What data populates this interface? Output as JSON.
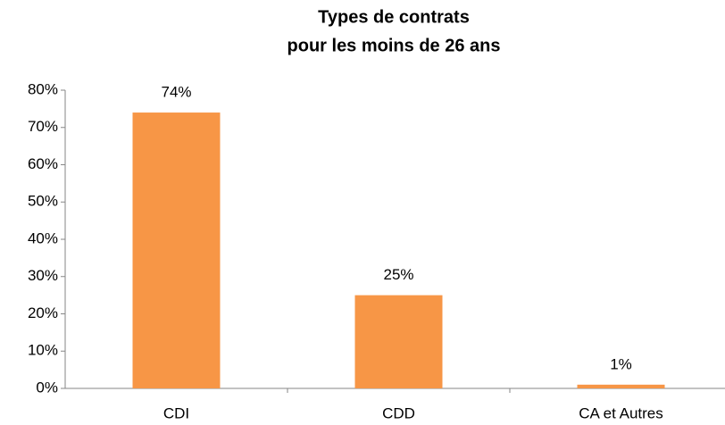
{
  "chart_data": {
    "type": "bar",
    "title": [
      "Types de contrats",
      "pour les moins de 26 ans"
    ],
    "categories": [
      "CDI",
      "CDD",
      "CA et Autres"
    ],
    "values": [
      74,
      25,
      1
    ],
    "value_labels": [
      "74%",
      "25%",
      "1%"
    ],
    "color": "#f79646",
    "ylim": [
      0,
      80
    ],
    "yticks": [
      {
        "value": 0,
        "label": "0%"
      },
      {
        "value": 10,
        "label": "10%"
      },
      {
        "value": 20,
        "label": "20%"
      },
      {
        "value": 30,
        "label": "30%"
      },
      {
        "value": 40,
        "label": "40%"
      },
      {
        "value": 50,
        "label": "50%"
      },
      {
        "value": 60,
        "label": "60%"
      },
      {
        "value": 70,
        "label": "70%"
      },
      {
        "value": 80,
        "label": "80%"
      }
    ],
    "grid": false
  }
}
